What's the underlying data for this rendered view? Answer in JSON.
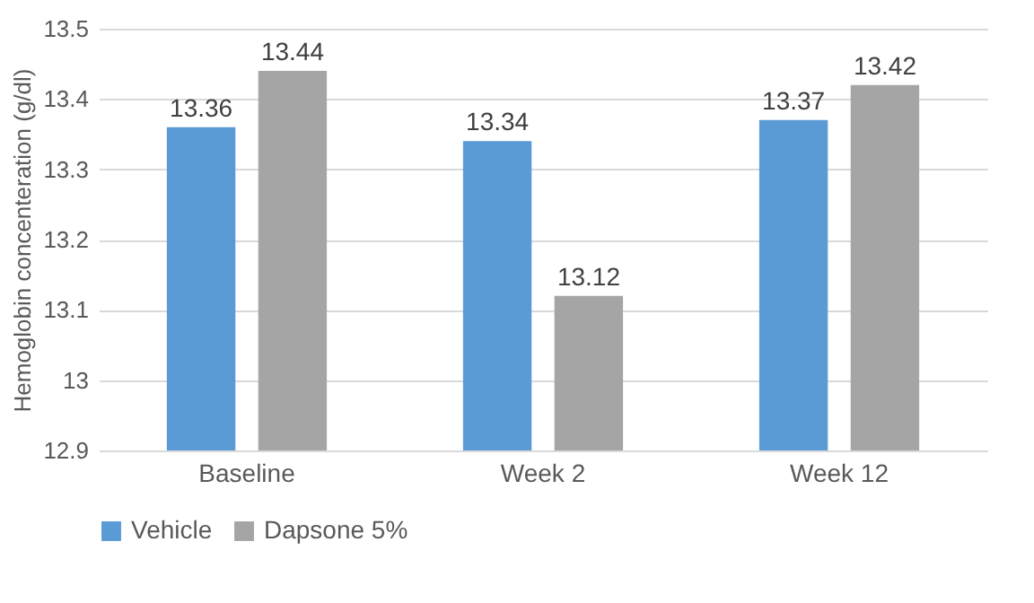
{
  "chart_data": {
    "type": "bar",
    "ylabel": "Hemoglobin concenteration (g/dl)",
    "categories": [
      "Baseline",
      "Week 2",
      "Week 12"
    ],
    "series": [
      {
        "name": "Vehicle",
        "color": "#5b9bd5",
        "values": [
          13.36,
          13.34,
          13.37
        ]
      },
      {
        "name": "Dapsone 5%",
        "color": "#a5a5a5",
        "values": [
          13.44,
          13.12,
          13.42
        ]
      }
    ],
    "ylim": [
      12.9,
      13.5
    ],
    "yticks": [
      12.9,
      13,
      13.1,
      13.2,
      13.3,
      13.4,
      13.5
    ],
    "grid": "y",
    "legend": "bottom",
    "data_labels": true
  }
}
